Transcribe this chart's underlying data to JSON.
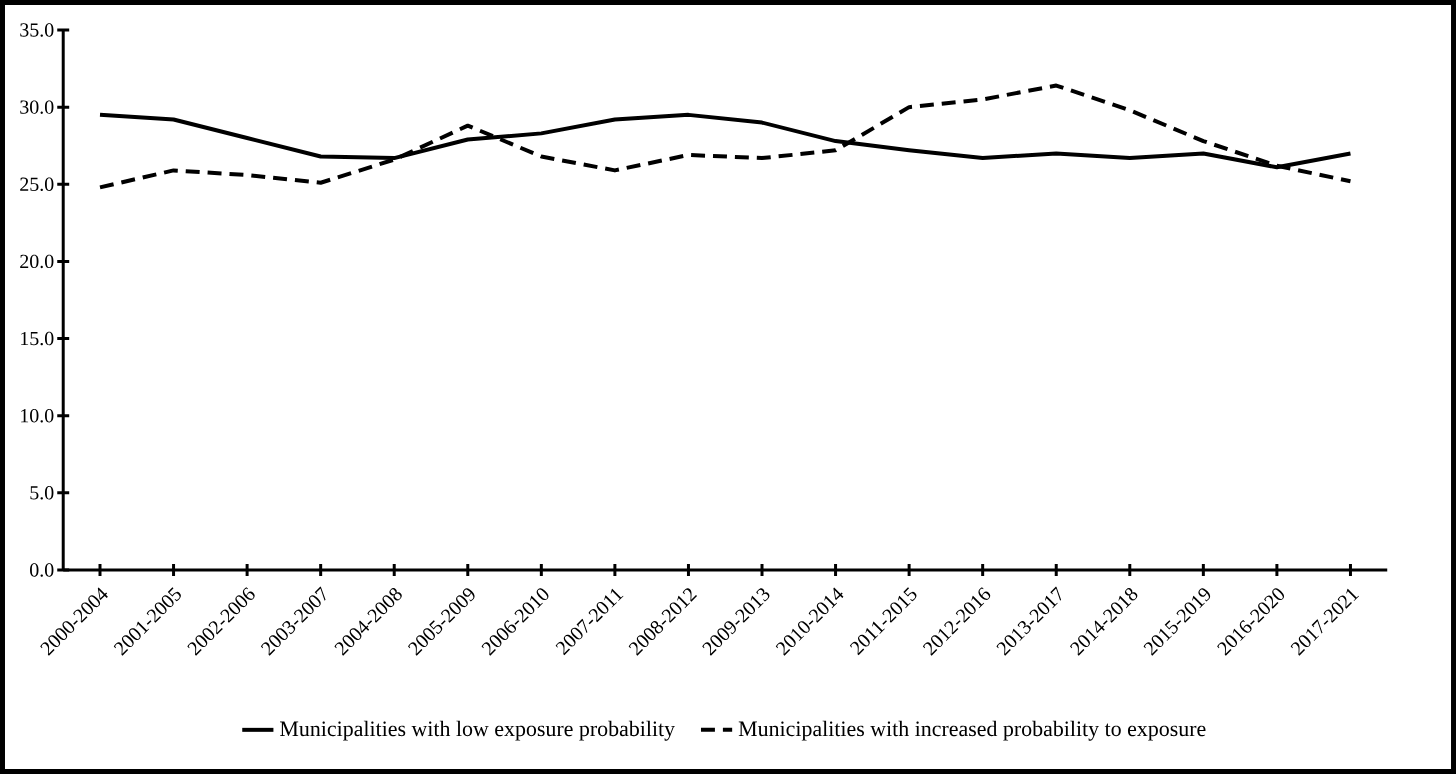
{
  "chart_data": {
    "type": "line",
    "categories": [
      "2000-2004",
      "2001-2005",
      "2002-2006",
      "2003-2007",
      "2004-2008",
      "2005-2009",
      "2006-2010",
      "2007-2011",
      "2008-2012",
      "2009-2013",
      "2010-2014",
      "2011-2015",
      "2012-2016",
      "2013-2017",
      "2014-2018",
      "2015-2019",
      "2016-2020",
      "2017-2021"
    ],
    "series": [
      {
        "name": "Municipalities with low exposure probability",
        "color": "#000000",
        "line_style": "solid",
        "values": [
          29.5,
          29.2,
          28.0,
          26.8,
          26.7,
          27.9,
          28.3,
          29.2,
          29.5,
          29.0,
          27.8,
          27.2,
          26.7,
          27.0,
          26.7,
          27.0,
          26.1,
          27.0
        ]
      },
      {
        "name": "Municipalities with increased probability to exposure",
        "color": "#000000",
        "line_style": "dashed",
        "values": [
          24.8,
          25.9,
          25.6,
          25.1,
          26.6,
          28.8,
          26.8,
          25.9,
          26.9,
          26.7,
          27.2,
          30.0,
          30.5,
          31.4,
          29.8,
          27.8,
          26.2,
          25.2
        ]
      }
    ],
    "ylim": [
      0,
      35
    ],
    "yticks": [
      {
        "value": 0,
        "label": "0.0"
      },
      {
        "value": 5,
        "label": "5.0"
      },
      {
        "value": 10,
        "label": "10.0"
      },
      {
        "value": 15,
        "label": "15.0"
      },
      {
        "value": 20,
        "label": "20.0"
      },
      {
        "value": 25,
        "label": "25.0"
      },
      {
        "value": 30,
        "label": "30.0"
      },
      {
        "value": 35,
        "label": "35.0"
      }
    ],
    "legend": "bottom",
    "marker": "none"
  }
}
